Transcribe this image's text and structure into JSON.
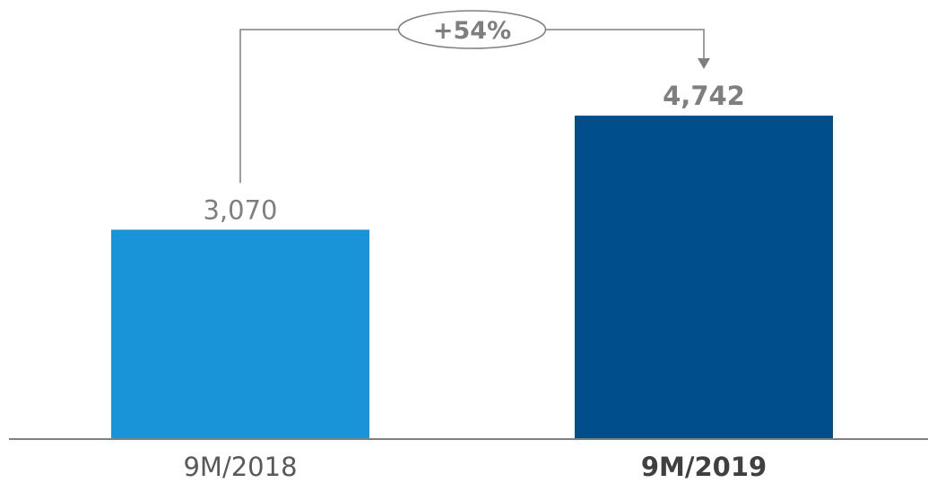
{
  "chart_data": {
    "type": "bar",
    "categories": [
      "9M/2018",
      "9M/2019"
    ],
    "values": [
      3070,
      4742
    ],
    "value_labels": [
      "3,070",
      "4,742"
    ],
    "highlight_index": 1,
    "ylim": [
      0,
      5000
    ],
    "grid": false,
    "annotation": {
      "from_index": 0,
      "to_index": 1,
      "label": "+54%"
    },
    "colors": {
      "bars": [
        "#1a94d8",
        "#004f8c"
      ],
      "axis": "#808080",
      "connector": "#7f7f7f"
    }
  }
}
